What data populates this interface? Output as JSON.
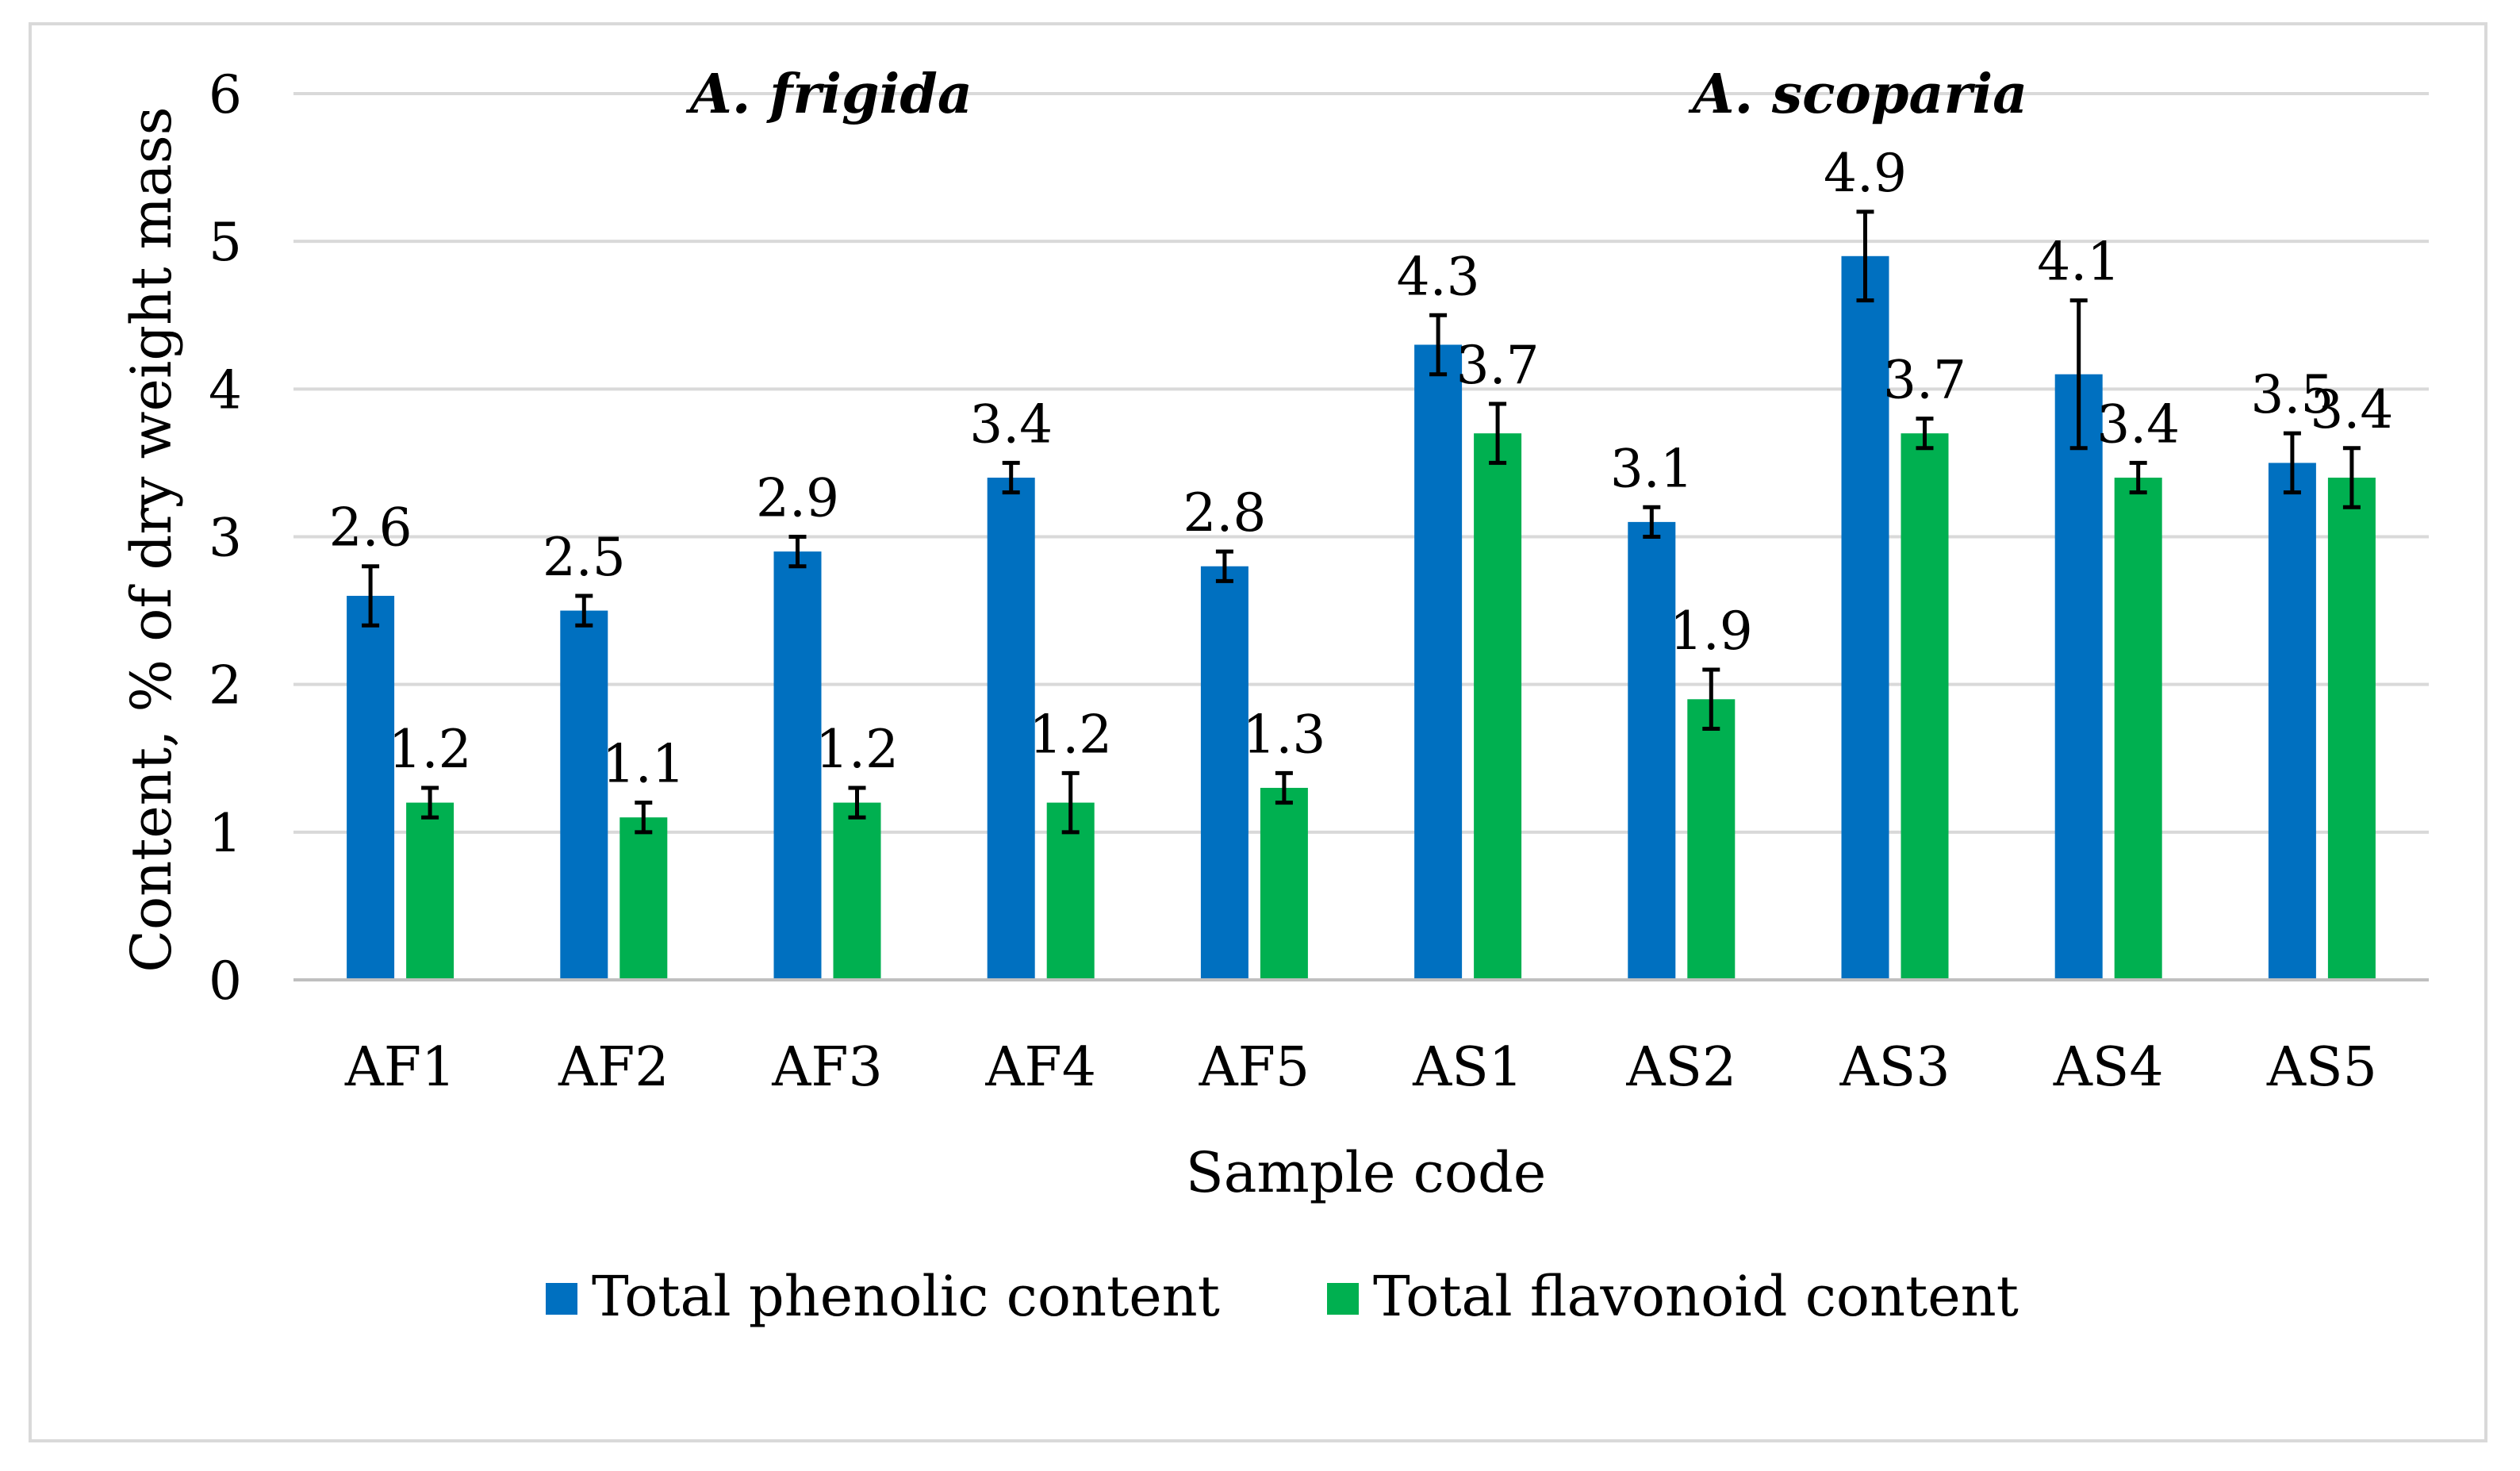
{
  "chart_data": {
    "type": "bar",
    "title": "",
    "xlabel": "Sample code",
    "ylabel": "Content, % of dry weight mass",
    "ylim": [
      0,
      6
    ],
    "yticks": [
      0,
      1,
      2,
      3,
      4,
      5,
      6
    ],
    "grid": true,
    "legend_position": "bottom",
    "categories": [
      "AF1",
      "AF2",
      "AF3",
      "AF4",
      "AF5",
      "AS1",
      "AS2",
      "AS3",
      "AS4",
      "AS5"
    ],
    "groups": [
      {
        "label": "A. frigida",
        "categories": [
          "AF1",
          "AF2",
          "AF3",
          "AF4",
          "AF5"
        ]
      },
      {
        "label": "A. scoparia",
        "categories": [
          "AS1",
          "AS2",
          "AS3",
          "AS4",
          "AS5"
        ]
      }
    ],
    "series": [
      {
        "name": "Total phenolic content",
        "color": "#0070c0",
        "values": [
          2.6,
          2.5,
          2.9,
          3.4,
          2.8,
          4.3,
          3.1,
          4.9,
          4.1,
          3.5
        ],
        "value_labels": [
          "2.6",
          "2.5",
          "2.9",
          "3.4",
          "2.8",
          "4.3",
          "3.1",
          "4.9",
          "4.1",
          "3.5"
        ],
        "errors": [
          0.2,
          0.1,
          0.1,
          0.1,
          0.1,
          0.2,
          0.1,
          0.3,
          0.5,
          0.2
        ]
      },
      {
        "name": "Total flavonoid content",
        "color": "#00b050",
        "values": [
          1.2,
          1.1,
          1.2,
          1.2,
          1.3,
          3.7,
          1.9,
          3.7,
          3.4,
          3.4
        ],
        "value_labels": [
          "1.2",
          "1.1",
          "1.2",
          "1.2",
          "1.3",
          "3.7",
          "1.9",
          "3.7",
          "3.4",
          "3.4"
        ],
        "errors": [
          0.1,
          0.1,
          0.1,
          0.2,
          0.1,
          0.2,
          0.2,
          0.1,
          0.1,
          0.2
        ]
      }
    ],
    "colors": {
      "grid": "#d9d9d9",
      "axis": "#bfbfbf",
      "error_bar": "#000000",
      "border": "#d9d9d9"
    }
  }
}
